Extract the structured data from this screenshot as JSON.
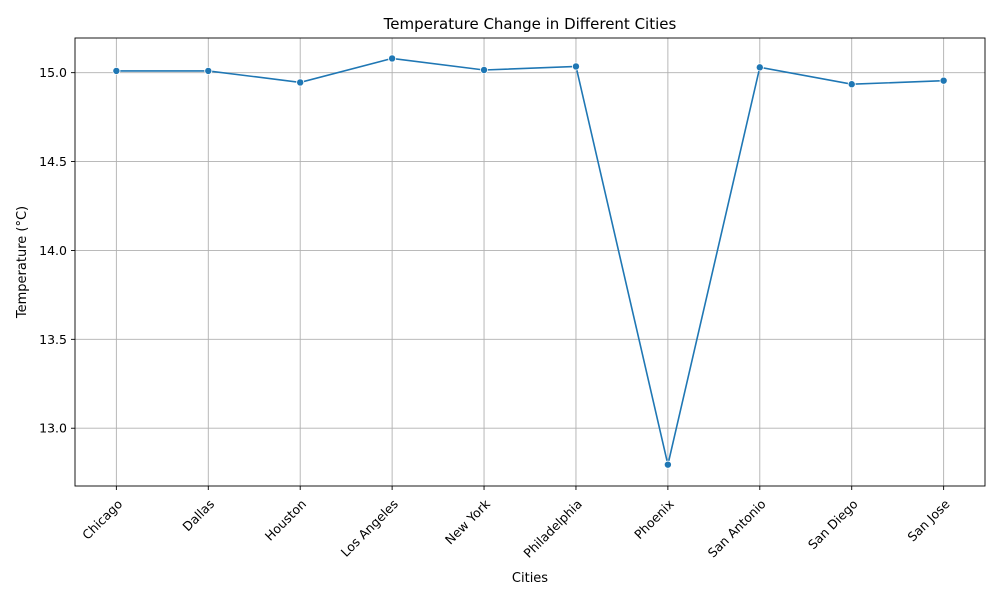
{
  "chart_data": {
    "type": "line",
    "title": "Temperature Change in Different Cities",
    "xlabel": "Cities",
    "ylabel": "Temperature (°C)",
    "categories": [
      "Chicago",
      "Dallas",
      "Houston",
      "Los Angeles",
      "New York",
      "Philadelphia",
      "Phoenix",
      "San Antonio",
      "San Diego",
      "San Jose"
    ],
    "series": [
      {
        "values": [
          15.01,
          15.01,
          14.945,
          15.08,
          15.015,
          15.035,
          12.795,
          15.03,
          14.935,
          14.955
        ]
      }
    ],
    "y_ticks": [
      "13.0",
      "13.5",
      "14.0",
      "14.5",
      "15.0"
    ],
    "ylim": [
      12.675,
      15.195
    ],
    "grid": true,
    "color": "#1f77b4",
    "marker": "circle"
  }
}
